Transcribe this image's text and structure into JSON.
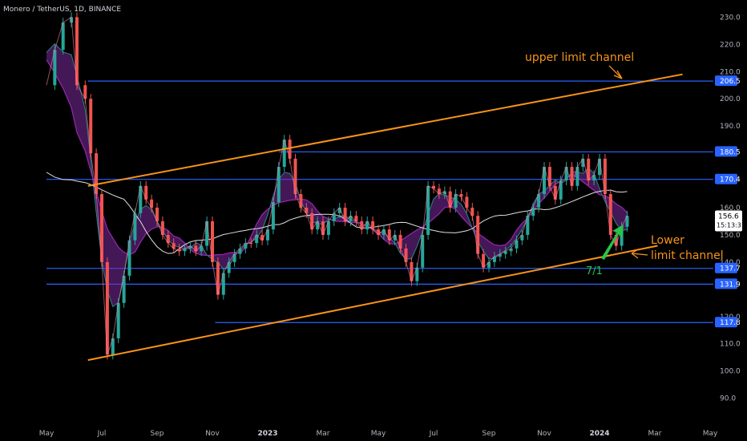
{
  "header": {
    "symbol_title": "Monero / TetherUS, 1D, BINANCE"
  },
  "chart_data": {
    "type": "line",
    "ylim": [
      90,
      232
    ],
    "y_ticks": [
      "230.0",
      "220.0",
      "210.0",
      "200.0",
      "190.0",
      "160.0",
      "150.0",
      "140.0",
      "120.0",
      "110.0",
      "100.0",
      "90.0"
    ],
    "y_tick_values": [
      230,
      220,
      210,
      200,
      190,
      160,
      150,
      140,
      120,
      110,
      100,
      90
    ],
    "x_ticks": [
      {
        "label": "May",
        "bold": false,
        "idx": 0
      },
      {
        "label": "Jul",
        "bold": false,
        "idx": 2
      },
      {
        "label": "Sep",
        "bold": false,
        "idx": 4
      },
      {
        "label": "Nov",
        "bold": false,
        "idx": 6
      },
      {
        "label": "2023",
        "bold": true,
        "idx": 8
      },
      {
        "label": "Mar",
        "bold": false,
        "idx": 10
      },
      {
        "label": "May",
        "bold": false,
        "idx": 12
      },
      {
        "label": "Jul",
        "bold": false,
        "idx": 14
      },
      {
        "label": "Sep",
        "bold": false,
        "idx": 16
      },
      {
        "label": "Nov",
        "bold": false,
        "idx": 18
      },
      {
        "label": "2024",
        "bold": true,
        "idx": 20
      },
      {
        "label": "Mar",
        "bold": false,
        "idx": 22
      },
      {
        "label": "May",
        "bold": false,
        "idx": 24
      }
    ],
    "x_months_count": 24,
    "price_points": [
      [
        0,
        205
      ],
      [
        0.3,
        218
      ],
      [
        0.6,
        228
      ],
      [
        0.9,
        230
      ],
      [
        1.1,
        205
      ],
      [
        1.4,
        200
      ],
      [
        1.6,
        180
      ],
      [
        1.8,
        165
      ],
      [
        2.0,
        140
      ],
      [
        2.2,
        106
      ],
      [
        2.4,
        112
      ],
      [
        2.6,
        125
      ],
      [
        2.8,
        135
      ],
      [
        3.0,
        148
      ],
      [
        3.2,
        158
      ],
      [
        3.4,
        168
      ],
      [
        3.6,
        163
      ],
      [
        3.8,
        160
      ],
      [
        4.0,
        155
      ],
      [
        4.2,
        150
      ],
      [
        4.4,
        147
      ],
      [
        4.6,
        145
      ],
      [
        4.8,
        144
      ],
      [
        5.0,
        145
      ],
      [
        5.2,
        146
      ],
      [
        5.4,
        144
      ],
      [
        5.6,
        146
      ],
      [
        5.8,
        155
      ],
      [
        6.0,
        140
      ],
      [
        6.2,
        128
      ],
      [
        6.4,
        136
      ],
      [
        6.6,
        140
      ],
      [
        6.8,
        143
      ],
      [
        7.0,
        145
      ],
      [
        7.2,
        147
      ],
      [
        7.4,
        147
      ],
      [
        7.6,
        150
      ],
      [
        7.8,
        148
      ],
      [
        8.0,
        152
      ],
      [
        8.2,
        162
      ],
      [
        8.4,
        175
      ],
      [
        8.6,
        185
      ],
      [
        8.8,
        178
      ],
      [
        9.0,
        165
      ],
      [
        9.2,
        160
      ],
      [
        9.4,
        158
      ],
      [
        9.6,
        152
      ],
      [
        9.8,
        155
      ],
      [
        10.0,
        150
      ],
      [
        10.2,
        155
      ],
      [
        10.4,
        158
      ],
      [
        10.6,
        160
      ],
      [
        10.8,
        155
      ],
      [
        11.0,
        157
      ],
      [
        11.2,
        155
      ],
      [
        11.4,
        152
      ],
      [
        11.6,
        155
      ],
      [
        11.8,
        152
      ],
      [
        12.0,
        150
      ],
      [
        12.2,
        152
      ],
      [
        12.4,
        148
      ],
      [
        12.6,
        150
      ],
      [
        12.8,
        145
      ],
      [
        13.0,
        140
      ],
      [
        13.2,
        133
      ],
      [
        13.4,
        138
      ],
      [
        13.6,
        150
      ],
      [
        13.8,
        168
      ],
      [
        14.0,
        167
      ],
      [
        14.2,
        165
      ],
      [
        14.4,
        166
      ],
      [
        14.6,
        160
      ],
      [
        14.8,
        165
      ],
      [
        15.0,
        164
      ],
      [
        15.2,
        160
      ],
      [
        15.4,
        157
      ],
      [
        15.6,
        143
      ],
      [
        15.8,
        138
      ],
      [
        16.0,
        140
      ],
      [
        16.2,
        142
      ],
      [
        16.4,
        143
      ],
      [
        16.6,
        144
      ],
      [
        16.8,
        145
      ],
      [
        17.0,
        148
      ],
      [
        17.2,
        150
      ],
      [
        17.4,
        157
      ],
      [
        17.6,
        160
      ],
      [
        17.8,
        165
      ],
      [
        18.0,
        175
      ],
      [
        18.2,
        168
      ],
      [
        18.4,
        163
      ],
      [
        18.6,
        170
      ],
      [
        18.8,
        175
      ],
      [
        19.0,
        168
      ],
      [
        19.2,
        175
      ],
      [
        19.4,
        178
      ],
      [
        19.6,
        170
      ],
      [
        19.8,
        172
      ],
      [
        20.0,
        178
      ],
      [
        20.2,
        165
      ],
      [
        20.4,
        150
      ],
      [
        20.6,
        146
      ],
      [
        20.8,
        153
      ],
      [
        21.0,
        157
      ]
    ],
    "horizontal_levels": [
      {
        "value": 206.5,
        "label": "206.5",
        "start_idx": 1.5
      },
      {
        "value": 180.5,
        "label": "180.5",
        "start_idx": 8.4
      },
      {
        "value": 170.4,
        "label": "170.4",
        "start_idx": 0
      },
      {
        "value": 137.7,
        "label": "137.7",
        "start_idx": 0
      },
      {
        "value": 131.9,
        "label": "131.9",
        "start_idx": 0
      },
      {
        "value": 117.8,
        "label": "117.8",
        "start_idx": 6.1
      }
    ],
    "current_price": {
      "value": 156.6,
      "label": "156.6",
      "countdown": "15:13:31"
    },
    "channel_upper": {
      "x1": 1.5,
      "y1": 168,
      "x2": 23.0,
      "y2": 209
    },
    "channel_lower": {
      "x1": 1.5,
      "y1": 104,
      "x2": 22.1,
      "y2": 146
    },
    "annotations": {
      "upper": "upper limit channel",
      "lower_1": "Lower",
      "lower_2": "limit channel",
      "green_note": "7/1"
    },
    "colors": {
      "accent_orange": "#f7931a",
      "level_blue": "#2962ff",
      "arrow_green": "#26c44a",
      "price_badge": "#ffffff",
      "ribbon_purple": "#7b2a9e"
    }
  }
}
